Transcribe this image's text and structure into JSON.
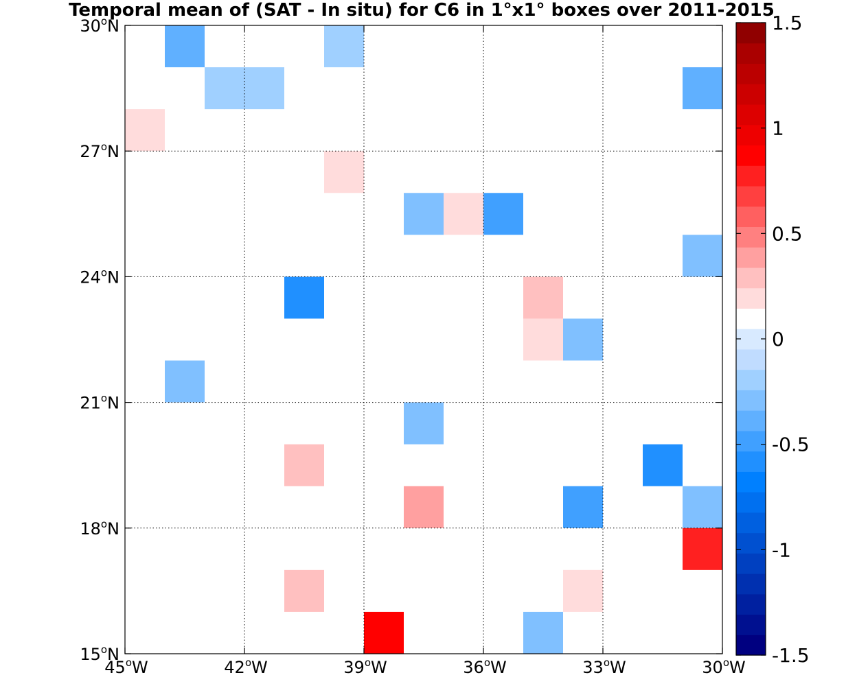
{
  "chart_data": {
    "type": "heatmap",
    "title": "Temporal mean of (SAT - In situ) for C6 in 1°x1° boxes over 2011-2015",
    "xlim": [
      -45,
      -30
    ],
    "ylim": [
      15,
      30
    ],
    "x_ticks": [
      {
        "value": -45,
        "deg": "45",
        "hemi": "W"
      },
      {
        "value": -42,
        "deg": "42",
        "hemi": "W"
      },
      {
        "value": -39,
        "deg": "39",
        "hemi": "W"
      },
      {
        "value": -36,
        "deg": "36",
        "hemi": "W"
      },
      {
        "value": -33,
        "deg": "33",
        "hemi": "W"
      },
      {
        "value": -30,
        "deg": "30",
        "hemi": "W"
      }
    ],
    "y_ticks": [
      {
        "value": 15,
        "deg": "15",
        "hemi": "N"
      },
      {
        "value": 18,
        "deg": "18",
        "hemi": "N"
      },
      {
        "value": 21,
        "deg": "21",
        "hemi": "N"
      },
      {
        "value": 24,
        "deg": "24",
        "hemi": "N"
      },
      {
        "value": 27,
        "deg": "27",
        "hemi": "N"
      },
      {
        "value": 30,
        "deg": "30",
        "hemi": "N"
      }
    ],
    "grid": "dotted",
    "colorbar": {
      "range": [
        -1.5,
        1.5
      ],
      "step": 0.1,
      "position": "right",
      "ticks": [
        {
          "value": 1.5,
          "label": "1.5"
        },
        {
          "value": 1.0,
          "label": "1"
        },
        {
          "value": 0.5,
          "label": "0.5"
        },
        {
          "value": 0.0,
          "label": "0"
        },
        {
          "value": -0.5,
          "label": "-0.5"
        },
        {
          "value": -1.0,
          "label": "-1"
        },
        {
          "value": -1.5,
          "label": "-1.5"
        }
      ],
      "colors": [
        "#000080",
        "#001090",
        "#0020a0",
        "#0030b0",
        "#0040c0",
        "#0050d0",
        "#0060e0",
        "#0070f0",
        "#0080ff",
        "#2090ff",
        "#40a0ff",
        "#60b0ff",
        "#80c0ff",
        "#a0d0ff",
        "#c0dcff",
        "#d8eaff",
        "#ffffff",
        "#ffdcdc",
        "#ffc0c0",
        "#ffa0a0",
        "#ff8080",
        "#ff6060",
        "#ff4040",
        "#ff2020",
        "#ff0000",
        "#ee0000",
        "#dd0000",
        "#cc0000",
        "#bb0000",
        "#aa0000",
        "#900000"
      ]
    },
    "cells": [
      {
        "lon": -44,
        "lat": 29,
        "value": -0.4
      },
      {
        "lon": -40,
        "lat": 29,
        "value": -0.2
      },
      {
        "lon": -43,
        "lat": 28,
        "value": -0.2
      },
      {
        "lon": -42,
        "lat": 28,
        "value": -0.2
      },
      {
        "lon": -31,
        "lat": 28,
        "value": -0.4
      },
      {
        "lon": -45,
        "lat": 27,
        "value": 0.2
      },
      {
        "lon": -40,
        "lat": 26,
        "value": 0.2
      },
      {
        "lon": -38,
        "lat": 25,
        "value": -0.3
      },
      {
        "lon": -37,
        "lat": 25,
        "value": 0.2
      },
      {
        "lon": -36,
        "lat": 25,
        "value": -0.5
      },
      {
        "lon": -31,
        "lat": 24,
        "value": -0.3
      },
      {
        "lon": -41,
        "lat": 23,
        "value": -0.6
      },
      {
        "lon": -35,
        "lat": 23,
        "value": 0.3
      },
      {
        "lon": -35,
        "lat": 22,
        "value": 0.2
      },
      {
        "lon": -34,
        "lat": 22,
        "value": -0.3
      },
      {
        "lon": -44,
        "lat": 21,
        "value": -0.3
      },
      {
        "lon": -38,
        "lat": 20,
        "value": -0.3
      },
      {
        "lon": -41,
        "lat": 19,
        "value": 0.3
      },
      {
        "lon": -32,
        "lat": 19,
        "value": -0.6
      },
      {
        "lon": -38,
        "lat": 18,
        "value": 0.4
      },
      {
        "lon": -34,
        "lat": 18,
        "value": -0.5
      },
      {
        "lon": -31,
        "lat": 18,
        "value": -0.3
      },
      {
        "lon": -31,
        "lat": 17,
        "value": 0.8
      },
      {
        "lon": -41,
        "lat": 16,
        "value": 0.3
      },
      {
        "lon": -34,
        "lat": 16,
        "value": 0.2
      },
      {
        "lon": -39,
        "lat": 15,
        "value": 0.9
      },
      {
        "lon": -35,
        "lat": 15,
        "value": -0.3
      }
    ]
  }
}
